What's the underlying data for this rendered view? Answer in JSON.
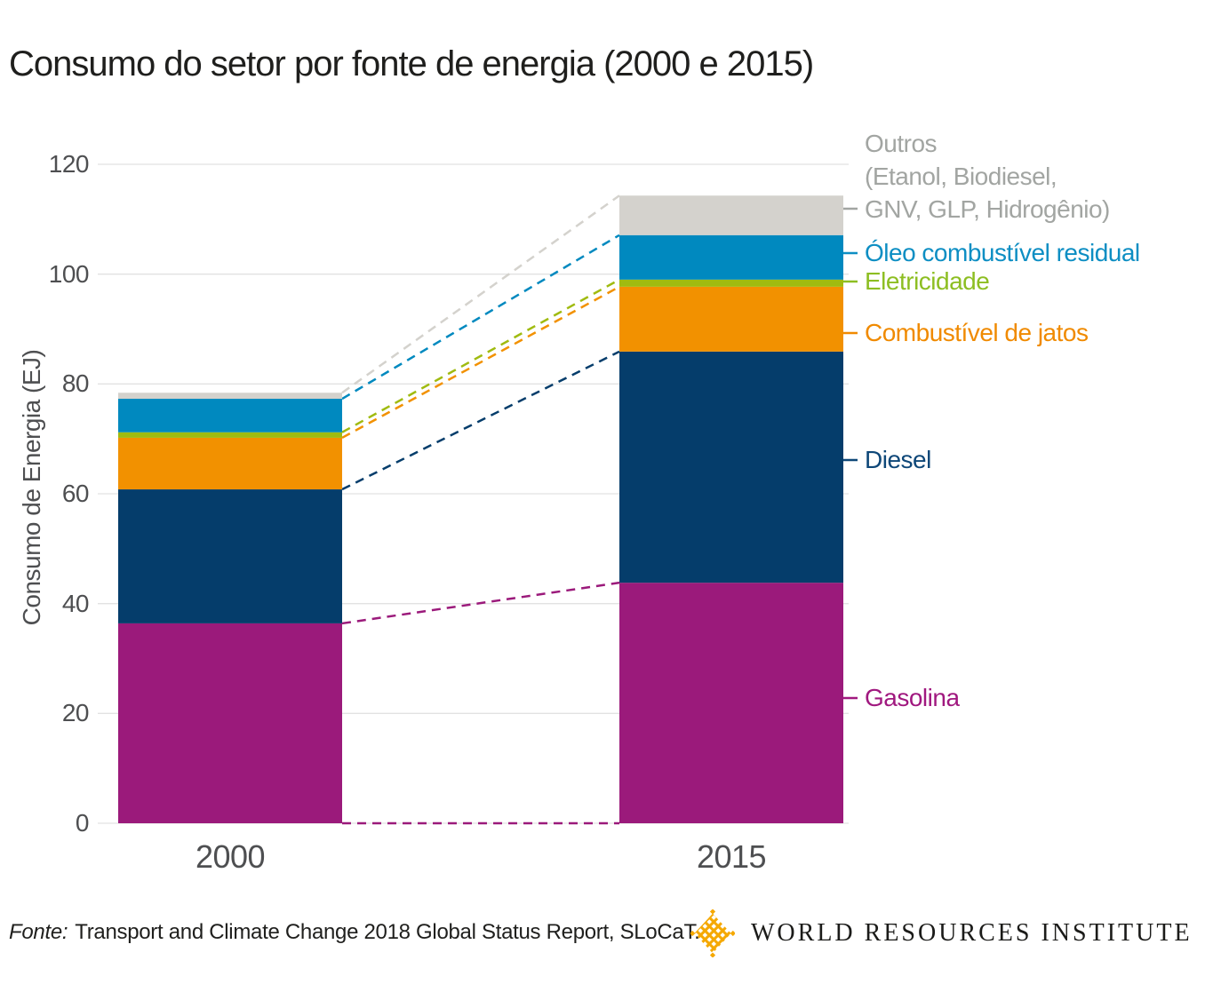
{
  "title": "Consumo do setor por fonte de energia (2000 e 2015)",
  "chart_data": {
    "type": "bar",
    "stacked": true,
    "title": "Consumo do setor por fonte de energia (2000 e 2015)",
    "ylabel": "Consumo de Energia (EJ)",
    "categories": [
      "2000",
      "2015"
    ],
    "series": [
      {
        "name": "Gasolina",
        "values": [
          36.4,
          43.8
        ],
        "color": "#9B1A7B",
        "label_color": "#A0187F",
        "label_lines": [
          "Gasolina"
        ]
      },
      {
        "name": "Diesel",
        "values": [
          24.4,
          42.1
        ],
        "color": "#053D6B",
        "label_color": "#0E4778",
        "label_lines": [
          "Diesel"
        ]
      },
      {
        "name": "Combustível de jatos",
        "values": [
          9.4,
          11.8
        ],
        "color": "#F29100",
        "label_color": "#F08A00",
        "label_lines": [
          "Combustível de jatos"
        ]
      },
      {
        "name": "Eletricidade",
        "values": [
          1.0,
          1.3
        ],
        "color": "#A0BB10",
        "label_color": "#8DBE22",
        "label_lines": [
          "Eletricidade"
        ]
      },
      {
        "name": "Óleo combustível residual",
        "values": [
          6.1,
          8.1
        ],
        "color": "#0089BF",
        "label_color": "#0D8EC3",
        "label_lines": [
          "Óleo combustível residual"
        ]
      },
      {
        "name": "Outros (Etanol, Biodiesel, GNV, GLP, Hidrogênio)",
        "values": [
          1.1,
          7.2
        ],
        "color": "#D4D2CD",
        "label_color": "#A2A5A2",
        "label_lines": [
          "Outros",
          "(Etanol, Biodiesel,",
          "GNV, GLP, Hidrogênio)"
        ]
      }
    ],
    "ylim": [
      0,
      120
    ],
    "yticks": [
      0,
      20,
      40,
      60,
      80,
      100,
      120
    ],
    "grid": true,
    "grid_color": "#E2E2E2",
    "axis_text_color": "#4E4F51",
    "legend_position": "right",
    "connector_style": "dashed lines linking segment boundaries between the 2000 and 2015 bars"
  },
  "footer": {
    "source_prefix": "Fonte:",
    "source_text": "Transport and Climate Change 2018 Global Status Report, SLoCaT.",
    "logo_text": "WORLD RESOURCES INSTITUTE",
    "logo_color": "#F5A800"
  }
}
